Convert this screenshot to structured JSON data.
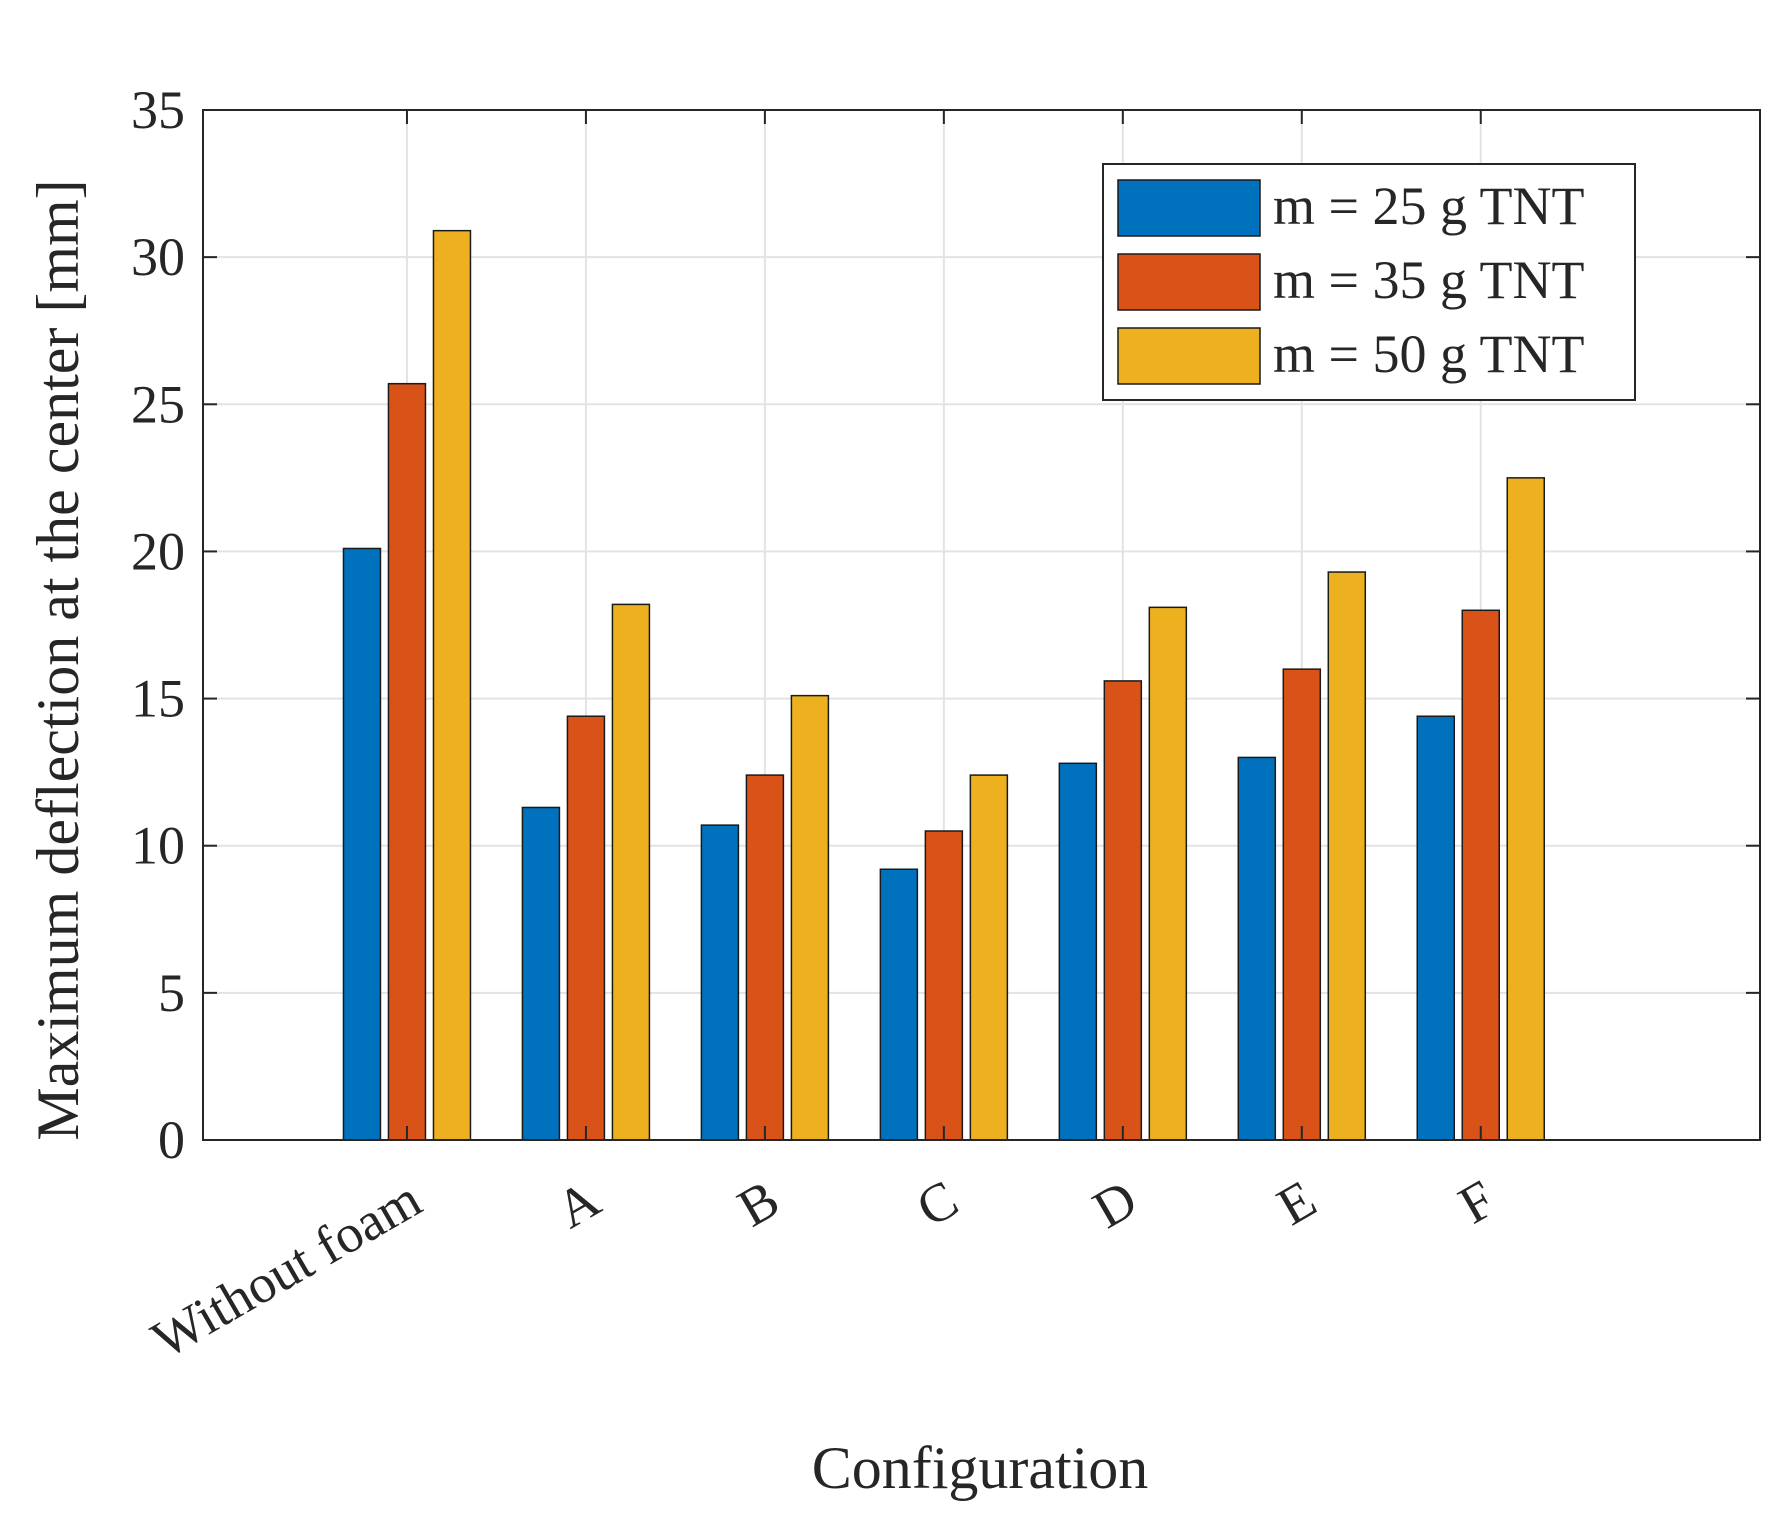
{
  "chart_data": {
    "type": "bar",
    "title": "",
    "xlabel": "Configuration",
    "ylabel": "Maximum deflection at the center [mm]",
    "ylim": [
      0,
      35
    ],
    "yticks": [
      0,
      5,
      10,
      15,
      20,
      25,
      30,
      35
    ],
    "grid": true,
    "legend_position": "top-right",
    "categories": [
      "Without foam",
      "A",
      "B",
      "C",
      "D",
      "E",
      "F"
    ],
    "series": [
      {
        "name": "m = 25 g TNT",
        "color": "#0072BD",
        "values": [
          20.1,
          11.3,
          10.7,
          9.2,
          12.8,
          13.0,
          14.4
        ]
      },
      {
        "name": "m = 35 g TNT",
        "color": "#D95319",
        "values": [
          25.7,
          14.4,
          12.4,
          10.5,
          15.6,
          16.0,
          18.0
        ]
      },
      {
        "name": "m = 50 g TNT",
        "color": "#EDB120",
        "values": [
          30.9,
          18.2,
          15.1,
          12.4,
          18.1,
          19.3,
          22.5
        ]
      }
    ]
  }
}
